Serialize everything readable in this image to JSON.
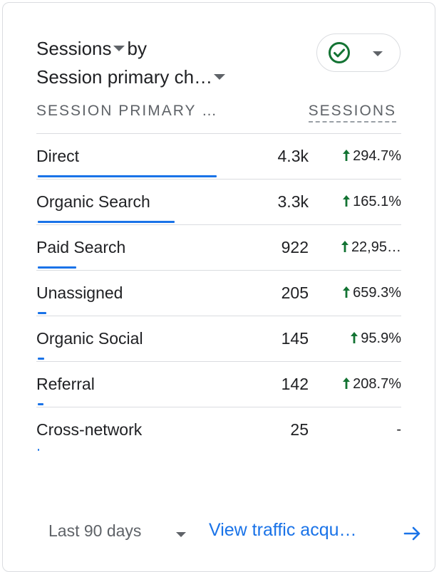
{
  "card": {
    "title_metric": "Sessions",
    "title_by": "by",
    "title_dimension": "Session primary ch…",
    "status_icon": "check-circle-icon",
    "accent_color": "#1a73e8",
    "positive_color": "#137333"
  },
  "table": {
    "col_dimension": "SESSION PRIMARY …",
    "col_metric": "SESSIONS",
    "rows": [
      {
        "label": "Direct",
        "value": "4.3k",
        "change": "294.7%",
        "trend": "up",
        "share": 0.49
      },
      {
        "label": "Organic Search",
        "value": "3.3k",
        "change": "165.1%",
        "trend": "up",
        "share": 0.375
      },
      {
        "label": "Paid Search",
        "value": "922",
        "change": "22,95…",
        "trend": "up",
        "share": 0.105
      },
      {
        "label": "Unassigned",
        "value": "205",
        "change": "659.3%",
        "trend": "up",
        "share": 0.024
      },
      {
        "label": "Organic Social",
        "value": "145",
        "change": "95.9%",
        "trend": "up",
        "share": 0.017
      },
      {
        "label": "Referral",
        "value": "142",
        "change": "208.7%",
        "trend": "up",
        "share": 0.016
      },
      {
        "label": "Cross-network",
        "value": "25",
        "change": "-",
        "trend": "none",
        "share": 0.003
      }
    ]
  },
  "footer": {
    "range_label": "Last 90 days",
    "link_label": "View traffic acqu…"
  }
}
